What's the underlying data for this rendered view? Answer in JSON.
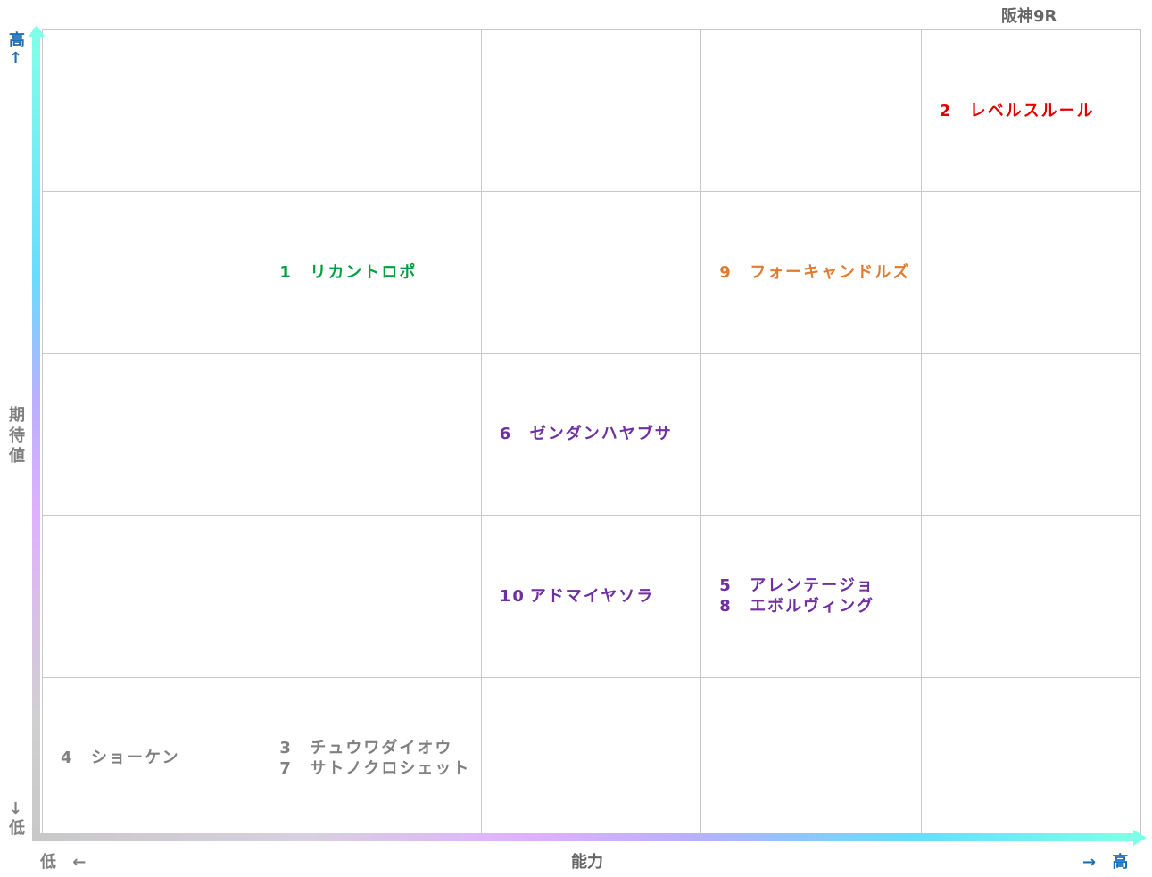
{
  "header": {
    "title": "阪神9R"
  },
  "y_axis": {
    "label": "期待値",
    "high": "高↑",
    "low": "↓低"
  },
  "x_axis": {
    "label": "能力",
    "low": "低 ←",
    "high": "→ 高"
  },
  "grid": {
    "rows": [
      {
        "cells": [
          [],
          [],
          [],
          [],
          [
            {
              "number": 2,
              "name": "レベルスルール",
              "color": "#e00000"
            }
          ]
        ]
      },
      {
        "cells": [
          [],
          [
            {
              "number": 1,
              "name": "リカントロポ",
              "color": "#00a040"
            }
          ],
          [],
          [
            {
              "number": 9,
              "name": "フォーキャンドルズ",
              "color": "#e07b30"
            }
          ],
          []
        ]
      },
      {
        "cells": [
          [],
          [],
          [
            {
              "number": 6,
              "name": "ゼンダンハヤブサ",
              "color": "#7030a0"
            }
          ],
          [],
          []
        ]
      },
      {
        "cells": [
          [],
          [],
          [
            {
              "number": 10,
              "name": "アドマイヤソラ",
              "color": "#7030a0"
            }
          ],
          [
            {
              "number": 5,
              "name": "アレンテージョ",
              "color": "#7030a0"
            },
            {
              "number": 8,
              "name": "エボルヴィング",
              "color": "#7030a0"
            }
          ],
          []
        ]
      },
      {
        "cells": [
          [
            {
              "number": 4,
              "name": "ショーケン",
              "color": "#808080"
            }
          ],
          [
            {
              "number": 3,
              "name": "チュウワダイオウ",
              "color": "#808080"
            },
            {
              "number": 7,
              "name": "サトノクロシェット",
              "color": "#808080"
            }
          ],
          [],
          [],
          []
        ]
      }
    ]
  }
}
